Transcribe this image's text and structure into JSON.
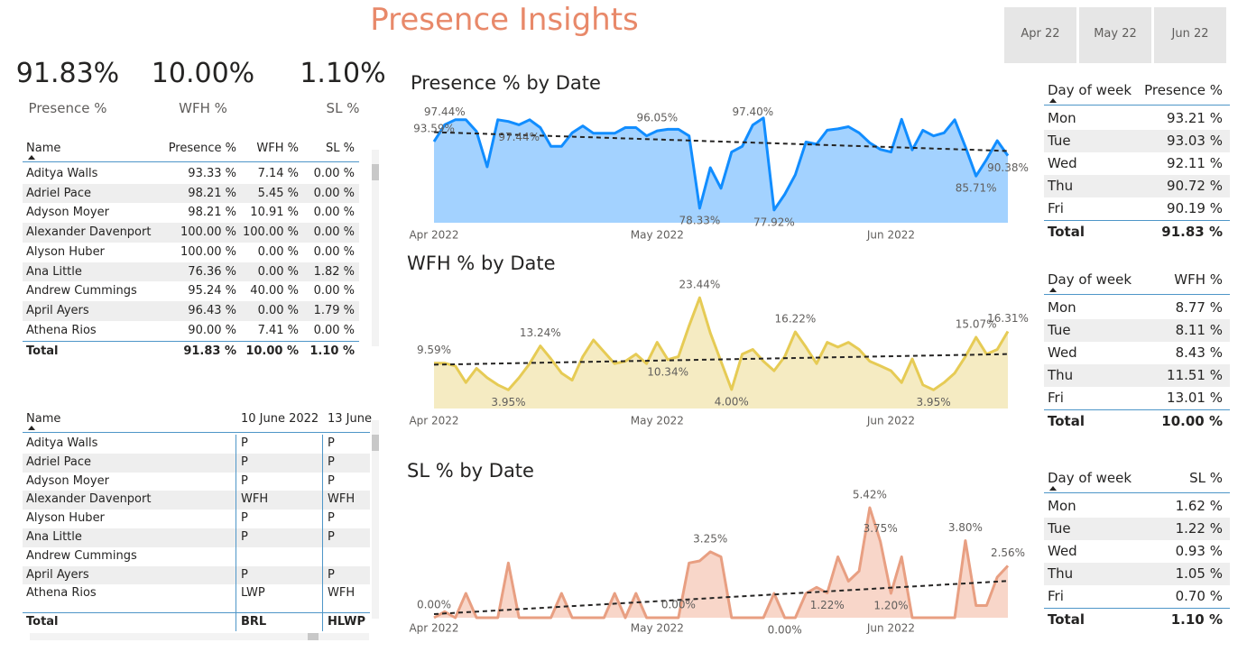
{
  "title": "Presence Insights",
  "slicer": [
    "Apr 22",
    "May 22",
    "Jun 22"
  ],
  "kpis": [
    {
      "value": "91.83%",
      "label": "Presence %"
    },
    {
      "value": "10.00%",
      "label": "WFH %"
    },
    {
      "value": "1.10%",
      "label": "SL %"
    }
  ],
  "name_table": {
    "columns": [
      "Name",
      "Presence %",
      "WFH %",
      "SL %"
    ],
    "rows": [
      [
        "Aditya Walls",
        "93.33 %",
        "7.14 %",
        "0.00 %"
      ],
      [
        "Adriel Pace",
        "98.21 %",
        "5.45 %",
        "0.00 %"
      ],
      [
        "Adyson Moyer",
        "98.21 %",
        "10.91 %",
        "0.00 %"
      ],
      [
        "Alexander Davenport",
        "100.00 %",
        "100.00 %",
        "0.00 %"
      ],
      [
        "Alyson Huber",
        "100.00 %",
        "0.00 %",
        "0.00 %"
      ],
      [
        "Ana Little",
        "76.36 %",
        "0.00 %",
        "1.82 %"
      ],
      [
        "Andrew Cummings",
        "95.24 %",
        "40.00 %",
        "0.00 %"
      ],
      [
        "April Ayers",
        "96.43 %",
        "0.00 %",
        "1.79 %"
      ],
      [
        "Athena Rios",
        "90.00 %",
        "7.41 %",
        "0.00 %"
      ]
    ],
    "total": [
      "Total",
      "91.83 %",
      "10.00 %",
      "1.10 %"
    ]
  },
  "status_table": {
    "columns": [
      "Name",
      "10 June 2022",
      "13 June"
    ],
    "rows": [
      [
        "Aditya Walls",
        "P",
        "P"
      ],
      [
        "Adriel Pace",
        "P",
        "P"
      ],
      [
        "Adyson Moyer",
        "P",
        "P"
      ],
      [
        "Alexander Davenport",
        "WFH",
        "WFH"
      ],
      [
        "Alyson Huber",
        "P",
        "P"
      ],
      [
        "Ana Little",
        "P",
        "P"
      ],
      [
        "Andrew Cummings",
        null,
        null
      ],
      [
        "April Ayers",
        "P",
        "P"
      ],
      [
        "Athena Rios",
        "LWP",
        "WFH"
      ]
    ],
    "total": [
      "Total",
      "BRL",
      "HLWP"
    ]
  },
  "day_tables": [
    {
      "columns": [
        "Day of week",
        "Presence %"
      ],
      "rows": [
        [
          "Mon",
          "93.21 %"
        ],
        [
          "Tue",
          "93.03 %"
        ],
        [
          "Wed",
          "92.11 %"
        ],
        [
          "Thu",
          "90.72 %"
        ],
        [
          "Fri",
          "90.19 %"
        ]
      ],
      "total": [
        "Total",
        "91.83 %"
      ]
    },
    {
      "columns": [
        "Day of week",
        "WFH %"
      ],
      "rows": [
        [
          "Mon",
          "8.77 %"
        ],
        [
          "Tue",
          "8.11 %"
        ],
        [
          "Wed",
          "8.43 %"
        ],
        [
          "Thu",
          "11.51 %"
        ],
        [
          "Fri",
          "13.01 %"
        ]
      ],
      "total": [
        "Total",
        "10.00 %"
      ]
    },
    {
      "columns": [
        "Day of week",
        "SL %"
      ],
      "rows": [
        [
          "Mon",
          "1.62 %"
        ],
        [
          "Tue",
          "1.22 %"
        ],
        [
          "Wed",
          "0.93 %"
        ],
        [
          "Thu",
          "1.05 %"
        ],
        [
          "Fri",
          "0.70 %"
        ]
      ],
      "total": [
        "Total",
        "1.10 %"
      ]
    }
  ],
  "chart_data": [
    {
      "type": "line",
      "title": "Presence % by Date",
      "categories": [
        "Apr 2022",
        null,
        null,
        null,
        null,
        null,
        null,
        null,
        null,
        null,
        null,
        null,
        null,
        null,
        null,
        null,
        null,
        null,
        null,
        null,
        null,
        "May 2022",
        null,
        null,
        null,
        null,
        null,
        null,
        null,
        null,
        null,
        null,
        null,
        null,
        null,
        null,
        null,
        null,
        null,
        null,
        null,
        null,
        null,
        "Jun 2022",
        null,
        null,
        null,
        null,
        null,
        null,
        null,
        null,
        null,
        null,
        null
      ],
      "values": [
        93.59,
        97.44,
        98.6,
        98.6,
        95.9,
        87.82,
        98.6,
        98.2,
        97.44,
        98.6,
        96.8,
        92.5,
        92.5,
        95.6,
        97.2,
        95.5,
        95.5,
        95.5,
        96.8,
        96.8,
        94.9,
        96.05,
        96.4,
        96.4,
        94.9,
        78.33,
        87.6,
        82.9,
        91.2,
        92.5,
        97.4,
        99.0,
        77.92,
        81.5,
        86.0,
        93.5,
        93.0,
        96.2,
        96.5,
        97.0,
        95.6,
        93.3,
        91.8,
        91.2,
        98.7,
        91.7,
        96.2,
        94.9,
        95.6,
        98.6,
        92.4,
        85.71,
        89.5,
        93.8,
        90.38
      ],
      "value_labels": [
        "93.59%",
        "97.44%",
        null,
        null,
        null,
        null,
        null,
        null,
        "97.44%",
        null,
        null,
        null,
        null,
        null,
        null,
        null,
        null,
        null,
        null,
        null,
        null,
        "96.05%",
        null,
        null,
        null,
        "78.33%",
        null,
        null,
        null,
        null,
        "97.40%",
        null,
        "77.92%",
        null,
        null,
        null,
        null,
        null,
        null,
        null,
        null,
        null,
        null,
        null,
        null,
        null,
        null,
        null,
        null,
        null,
        null,
        "85.71%",
        null,
        null,
        "90.38%"
      ],
      "color": "#118DFF",
      "area_color": "#A3D2FF",
      "trend_line": true,
      "ylim": [
        75,
        100
      ]
    },
    {
      "type": "line",
      "title": "WFH % by Date",
      "categories": [
        "Apr 2022",
        null,
        null,
        null,
        null,
        null,
        null,
        null,
        null,
        null,
        null,
        null,
        null,
        null,
        null,
        null,
        null,
        null,
        null,
        null,
        null,
        "May 2022",
        null,
        null,
        null,
        null,
        null,
        null,
        null,
        null,
        null,
        null,
        null,
        null,
        null,
        null,
        null,
        null,
        null,
        null,
        null,
        null,
        null,
        "Jun 2022",
        null,
        null,
        null,
        null,
        null,
        null,
        null,
        null,
        null,
        null,
        null
      ],
      "values": [
        9.59,
        9.59,
        9.0,
        5.5,
        8.5,
        6.5,
        5.0,
        3.95,
        6.5,
        9.5,
        13.24,
        10.5,
        7.5,
        6.0,
        11.0,
        14.5,
        12.0,
        9.5,
        10.0,
        11.5,
        9.5,
        14.0,
        10.34,
        11.0,
        17.5,
        23.44,
        16.0,
        10.0,
        4.0,
        11.5,
        12.5,
        10.0,
        8.0,
        11.0,
        16.22,
        13.0,
        9.5,
        14.0,
        13.0,
        14.0,
        12.5,
        10.0,
        9.0,
        8.0,
        5.5,
        10.5,
        5.0,
        3.95,
        5.5,
        7.5,
        11.0,
        15.07,
        11.5,
        12.5,
        16.31
      ],
      "value_labels": [
        "9.59%",
        null,
        null,
        null,
        null,
        null,
        null,
        "3.95%",
        null,
        null,
        "13.24%",
        null,
        null,
        null,
        null,
        null,
        null,
        null,
        null,
        null,
        null,
        null,
        "10.34%",
        null,
        null,
        "23.44%",
        null,
        null,
        "4.00%",
        null,
        null,
        null,
        null,
        null,
        "16.22%",
        null,
        null,
        null,
        null,
        null,
        null,
        null,
        null,
        null,
        null,
        null,
        null,
        "3.95%",
        null,
        null,
        null,
        "15.07%",
        null,
        null,
        "16.31%"
      ],
      "color": "#E6CB55",
      "area_color": "#F5EBC2",
      "trend_line": true,
      "ylim": [
        0,
        25
      ]
    },
    {
      "type": "line",
      "title": "SL % by Date",
      "categories": [
        "Apr 2022",
        null,
        null,
        null,
        null,
        null,
        null,
        null,
        null,
        null,
        null,
        null,
        null,
        null,
        null,
        null,
        null,
        null,
        null,
        null,
        null,
        "May 2022",
        null,
        null,
        null,
        null,
        null,
        null,
        null,
        null,
        null,
        null,
        null,
        null,
        null,
        null,
        null,
        null,
        null,
        null,
        null,
        null,
        null,
        "Jun 2022",
        null,
        null,
        null,
        null,
        null,
        null,
        null,
        null,
        null,
        null,
        null
      ],
      "values": [
        0.0,
        0.3,
        0,
        1.2,
        0,
        0,
        0,
        2.7,
        0,
        0,
        0,
        0,
        1.2,
        0,
        0,
        0,
        0,
        1.2,
        0,
        1.2,
        0,
        0,
        0,
        0.0,
        2.7,
        2.8,
        3.25,
        3.0,
        0,
        0,
        0,
        0,
        1.2,
        0.0,
        0,
        1.2,
        1.5,
        1.22,
        3.0,
        1.8,
        2.3,
        5.42,
        3.75,
        1.2,
        3.0,
        0,
        0,
        0,
        0,
        0,
        3.8,
        0.6,
        0.6,
        2.0,
        2.56
      ],
      "value_labels": [
        "0.00%",
        null,
        null,
        null,
        null,
        null,
        null,
        null,
        null,
        null,
        null,
        null,
        null,
        null,
        null,
        null,
        null,
        null,
        null,
        null,
        null,
        null,
        null,
        "0.00%",
        null,
        null,
        "3.25%",
        null,
        null,
        null,
        null,
        null,
        null,
        "0.00%",
        null,
        null,
        null,
        "1.22%",
        null,
        null,
        null,
        "5.42%",
        "3.75%",
        "1.20%",
        null,
        null,
        null,
        null,
        null,
        null,
        "3.80%",
        null,
        null,
        null,
        "2.56%"
      ],
      "color": "#E89F82",
      "area_color": "#F8D6C9",
      "trend_line": true,
      "ylim": [
        0,
        6
      ]
    }
  ]
}
